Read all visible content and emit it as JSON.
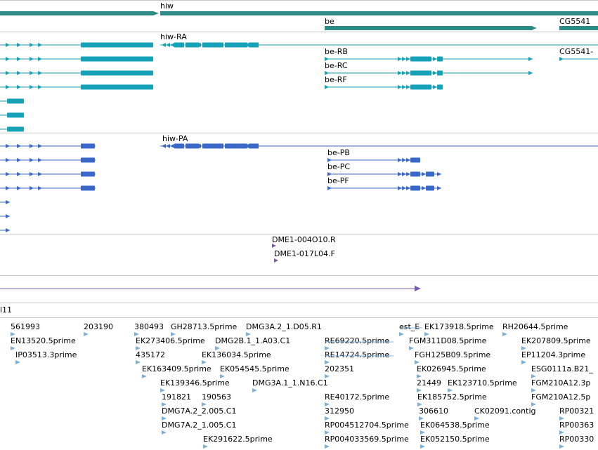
{
  "colors": {
    "gene": "#2f8a86",
    "transcript": "#16a2b8",
    "cds": "#3a68c8",
    "primer": "#7a5aa8",
    "est": "#7fb0d6",
    "separator": "#c8c8c8"
  },
  "tracks": {
    "gene": {
      "labels": [
        "hiw",
        "be",
        "CG5541"
      ]
    },
    "transcripts": {
      "labels": [
        "hiw-RA",
        "be-RB",
        "be-RC",
        "be-RF",
        "CG5541-"
      ]
    },
    "cds": {
      "labels": [
        "hiw-PA",
        "be-PB",
        "be-PC",
        "be-PF"
      ]
    },
    "primers": {
      "labels": [
        "DME1-004O10.R",
        "DME1-017L04.F"
      ]
    },
    "partial": {
      "label": "l11"
    },
    "est": {
      "labels": [
        "561993",
        "203190",
        "380493",
        "GH28713.5prime",
        "DMG3A.2_1.D05.R1",
        "est_E",
        "EK173918.5prime",
        "RH20644.5prime",
        "EN13520.5prime",
        "EK273406.5prime",
        "DMG2B.1_1.A03.C1",
        "RE69220.5prime",
        "FGM311D08.5prime",
        "EK207809.5prime",
        "IP03513.3prime",
        "435172",
        "EK136034.5prime",
        "RE14724.5prime",
        "FGH125B09.5prime",
        "EP11204.3prime",
        "EK163409.5prime",
        "EK054545.5prime",
        "202351",
        "EK026945.5prime",
        "ESG0111a.B21_",
        "EK139346.5prime",
        "DMG3A.1_1.N16.C1",
        "21449",
        "EK123710.5prime",
        "FGM210A12.3p",
        "191821",
        "190563",
        "RE40172.5prime",
        "EK185752.5prime",
        "FGM210A12.5p",
        "DMG7A.2_2.005.C1",
        "312950",
        "306610",
        "CK02091.contig",
        "RP00321",
        "DMG7A.2_1.005.C1",
        "RP004512704.5prime",
        "EK064538.5prime",
        "RP00363",
        "EK291622.5prime",
        "RP004033569.5prime",
        "EK052150.5prime",
        "RP00330"
      ]
    }
  }
}
